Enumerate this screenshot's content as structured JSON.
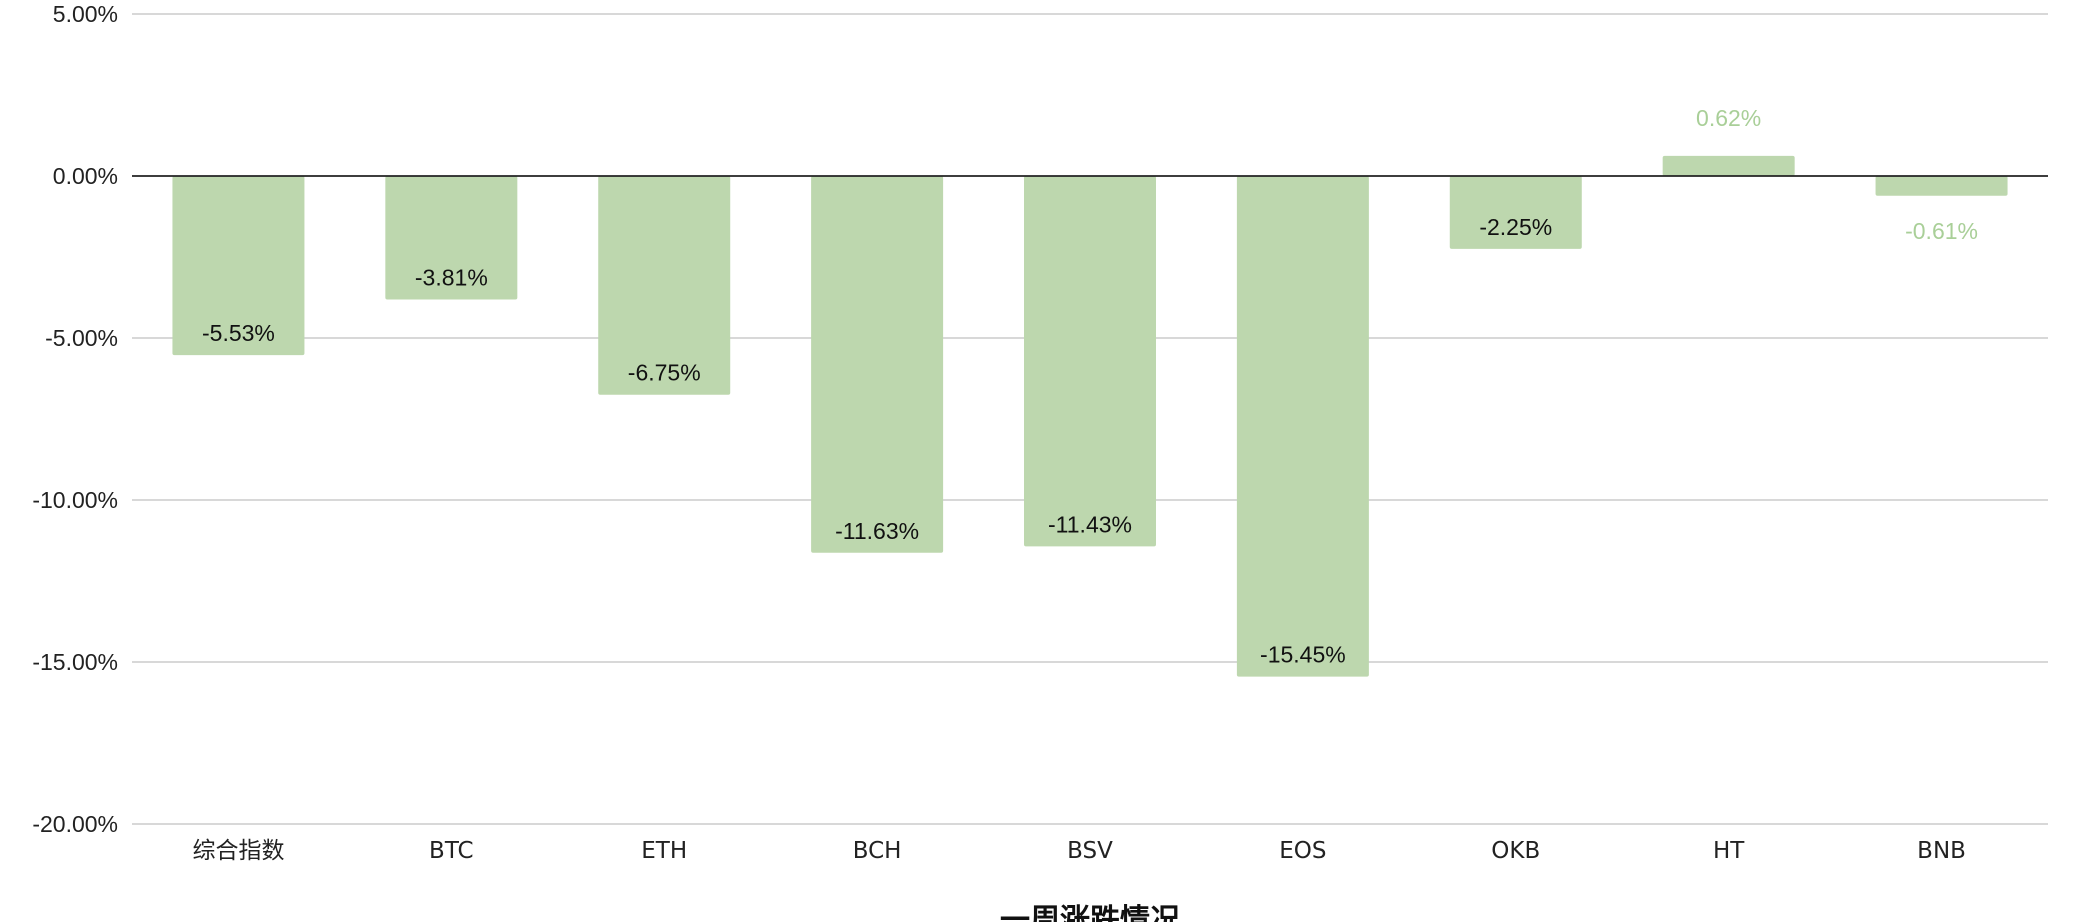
{
  "chart_data": {
    "type": "bar",
    "categories": [
      "综合指数",
      "BTC",
      "ETH",
      "BCH",
      "BSV",
      "EOS",
      "OKB",
      "HT",
      "BNB"
    ],
    "values": [
      -5.53,
      -3.81,
      -6.75,
      -11.63,
      -11.43,
      -15.45,
      -2.25,
      0.62,
      -0.61
    ],
    "data_labels": [
      "-5.53%",
      "-3.81%",
      "-6.75%",
      "-11.63%",
      "-11.43%",
      "-15.45%",
      "-2.25%",
      "0.62%",
      "-0.61%"
    ],
    "y_ticks": [
      5,
      0,
      -5,
      -10,
      -15,
      -20
    ],
    "y_tick_labels": [
      "5.00%",
      "0.00%",
      "-5.00%",
      "-10.00%",
      "-15.00%",
      "-20.00%"
    ],
    "ylim": [
      -20,
      5
    ],
    "xlabel": "一周涨跌情况",
    "grid": true,
    "bar_color": "#bdd7ae",
    "label_color_inside": "#111111",
    "label_color_outside": "#a9cf98"
  }
}
